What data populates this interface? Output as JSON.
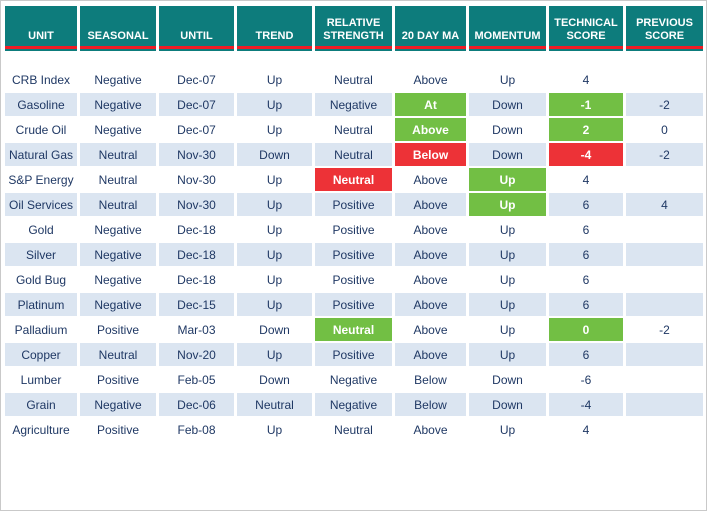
{
  "chart_data": {
    "type": "table",
    "title": "",
    "columns": [
      "UNIT",
      "SEASONAL",
      "UNTIL",
      "TREND",
      "RELATIVE STRENGTH",
      "20 DAY MA",
      "MOMENTUM",
      "TECHNICAL SCORE",
      "PREVIOUS SCORE"
    ],
    "rows": [
      [
        "CRB Index",
        "Negative",
        "Dec-07",
        "Up",
        "Neutral",
        "Above",
        "Up",
        "4",
        ""
      ],
      [
        "Gasoline",
        "Negative",
        "Dec-07",
        "Up",
        "Negative",
        "At",
        "Down",
        "-1",
        "-2"
      ],
      [
        "Crude Oil",
        "Negative",
        "Dec-07",
        "Up",
        "Neutral",
        "Above",
        "Down",
        "2",
        "0"
      ],
      [
        "Natural Gas",
        "Neutral",
        "Nov-30",
        "Down",
        "Neutral",
        "Below",
        "Down",
        "-4",
        "-2"
      ],
      [
        "S&P Energy",
        "Neutral",
        "Nov-30",
        "Up",
        "Neutral",
        "Above",
        "Up",
        "4",
        ""
      ],
      [
        "Oil Services",
        "Neutral",
        "Nov-30",
        "Up",
        "Positive",
        "Above",
        "Up",
        "6",
        "4"
      ],
      [
        "Gold",
        "Negative",
        "Dec-18",
        "Up",
        "Positive",
        "Above",
        "Up",
        "6",
        ""
      ],
      [
        "Silver",
        "Negative",
        "Dec-18",
        "Up",
        "Positive",
        "Above",
        "Up",
        "6",
        ""
      ],
      [
        "Gold Bug",
        "Negative",
        "Dec-18",
        "Up",
        "Positive",
        "Above",
        "Up",
        "6",
        ""
      ],
      [
        "Platinum",
        "Negative",
        "Dec-15",
        "Up",
        "Positive",
        "Above",
        "Up",
        "6",
        ""
      ],
      [
        "Palladium",
        "Positive",
        "Mar-03",
        "Down",
        "Neutral",
        "Above",
        "Up",
        "0",
        "-2"
      ],
      [
        "Copper",
        "Neutral",
        "Nov-20",
        "Up",
        "Positive",
        "Above",
        "Up",
        "6",
        ""
      ],
      [
        "Lumber",
        "Positive",
        "Feb-05",
        "Down",
        "Negative",
        "Below",
        "Down",
        "-6",
        ""
      ],
      [
        "Grain",
        "Negative",
        "Dec-06",
        "Neutral",
        "Negative",
        "Below",
        "Down",
        "-4",
        ""
      ],
      [
        "Agriculture",
        "Positive",
        "Feb-08",
        "Up",
        "Neutral",
        "Above",
        "Up",
        "4",
        ""
      ]
    ],
    "cell_highlights": {
      "1": {
        "5": "green",
        "7": "green"
      },
      "2": {
        "5": "green",
        "7": "green"
      },
      "3": {
        "5": "red",
        "7": "red"
      },
      "4": {
        "4": "red",
        "6": "green"
      },
      "5": {
        "6": "green"
      },
      "10": {
        "4": "green",
        "7": "green"
      }
    },
    "legend_position": "none",
    "grid": "banded-rows"
  },
  "colors": {
    "header_bg": "#0d7c7c",
    "header_text": "#ffffff",
    "header_accent": "#ee1c25",
    "row_even_bg": "#ffffff",
    "row_odd_bg": "#dbe5f1",
    "cell_text": "#1f3864",
    "highlight_green": "#72bf44",
    "highlight_red": "#ed3237",
    "highlight_text": "#ffffff"
  }
}
